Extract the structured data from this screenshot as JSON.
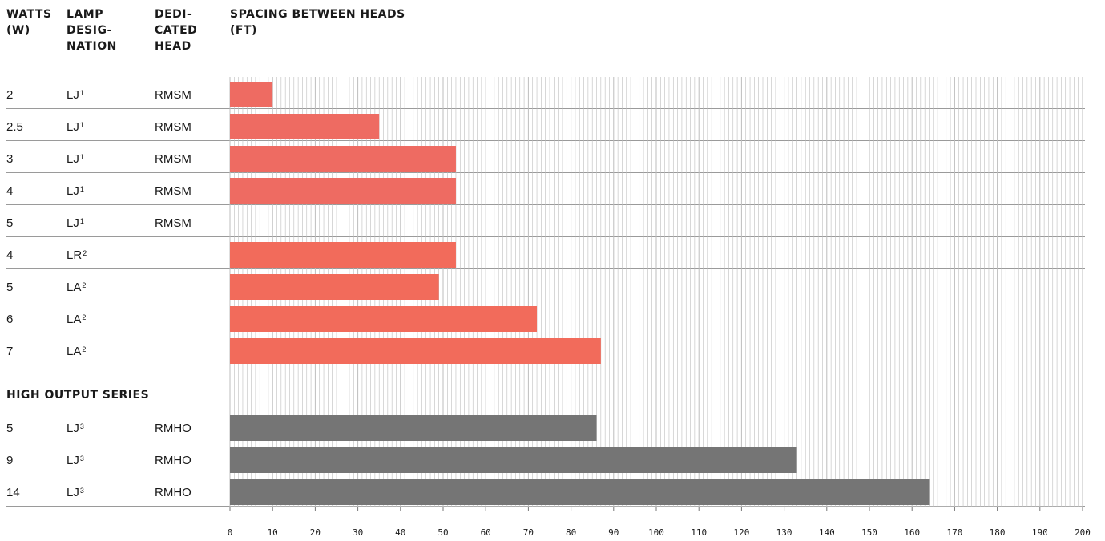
{
  "headers": {
    "watts": "WATTS\n(W)",
    "lamp": "LAMP\nDESIG-\nNATION",
    "head": "DEDI-\nCATED\nHEAD",
    "spacing": "SPACING BETWEEN HEADS\n(FT)"
  },
  "rows": [
    {
      "watts": "2",
      "lamp": "LJ",
      "sup": "1",
      "head": "RMSM"
    },
    {
      "watts": "2.5",
      "lamp": "LJ",
      "sup": "1",
      "head": "RMSM"
    },
    {
      "watts": "3",
      "lamp": "LJ",
      "sup": "1",
      "head": "RMSM"
    },
    {
      "watts": "4",
      "lamp": "LJ",
      "sup": "1",
      "head": "RMSM"
    },
    {
      "watts": "5",
      "lamp": "LJ",
      "sup": "1",
      "head": "RMSM"
    },
    {
      "watts": "4",
      "lamp": "LR",
      "sup": "2",
      "head": ""
    },
    {
      "watts": "5",
      "lamp": "LA",
      "sup": "2",
      "head": ""
    },
    {
      "watts": "6",
      "lamp": "LA",
      "sup": "2",
      "head": ""
    },
    {
      "watts": "7",
      "lamp": "LA",
      "sup": "2",
      "head": ""
    },
    {
      "watts": "5",
      "lamp": "LJ",
      "sup": "3",
      "head": "RMHO"
    },
    {
      "watts": "9",
      "lamp": "LJ",
      "sup": "3",
      "head": "RMHO"
    },
    {
      "watts": "14",
      "lamp": "LJ",
      "sup": "3",
      "head": "RMHO"
    }
  ],
  "section_label": "HIGH OUTPUT SERIES",
  "colors": {
    "standard_light": "#ee6b62",
    "standard": "#f26b5b",
    "high_output": "#757575",
    "grid": "#bdbdbd"
  },
  "chart_data": {
    "type": "bar",
    "orientation": "horizontal",
    "xlabel": "SPACING BETWEEN HEADS (FT)",
    "xlim": [
      0,
      200
    ],
    "xticks": [
      0,
      10,
      20,
      30,
      40,
      50,
      60,
      70,
      80,
      90,
      100,
      110,
      120,
      130,
      140,
      150,
      160,
      170,
      180,
      190,
      200
    ],
    "minor_grid_step": 1,
    "series": [
      {
        "values": [
          10,
          35,
          53,
          53,
          null,
          53,
          49,
          72,
          87,
          null,
          null,
          null
        ]
      },
      {
        "values": [
          null,
          null,
          null,
          null,
          null,
          null,
          null,
          null,
          null,
          86,
          133,
          164
        ]
      }
    ]
  }
}
